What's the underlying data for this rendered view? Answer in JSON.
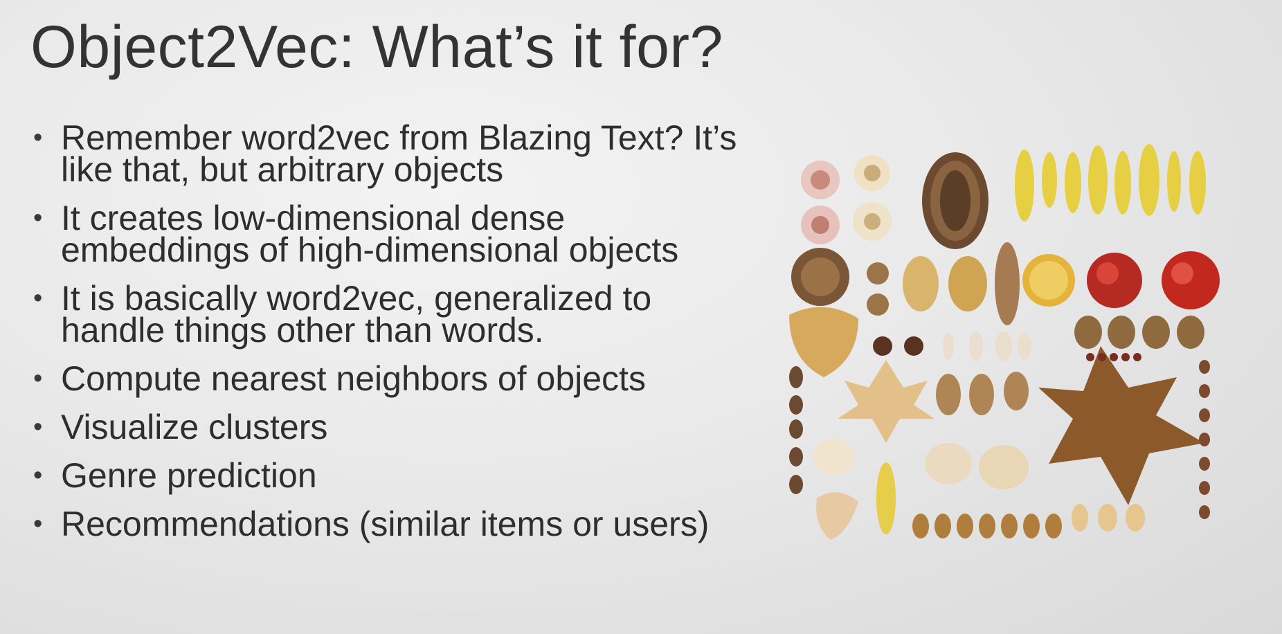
{
  "slide": {
    "title": "Object2Vec: What’s it for?",
    "bullets": [
      "Remember word2vec from Blazing Text? It’s like that, but arbitrary objects",
      "It creates low-dimensional dense embeddings of high-dimensional objects",
      "It is basically word2vec, generalized to handle things other than words.",
      "Compute nearest neighbors of objects",
      "Visualize clusters",
      "Genre prediction",
      "Recommendations (similar items or users)"
    ]
  },
  "image": {
    "semantic": "autumn-objects-collage-image"
  }
}
